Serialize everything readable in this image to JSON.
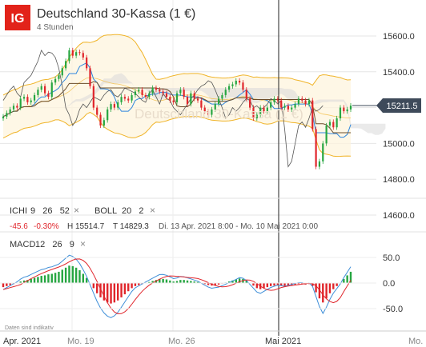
{
  "header": {
    "logo": "IG",
    "title": "Deutschland 30-Kassa (1 €)",
    "subtitle": "4 Stunden"
  },
  "colors": {
    "logo_bg": "#e2231a",
    "up": "#26a641",
    "down": "#e0252b",
    "bollinger": "#f0b429",
    "cloud": "#d9d9d9",
    "tenkan": "#2e86de",
    "kijun": "#6b4c2a",
    "chikou": "#555555",
    "macd_line": "#3f8fd8",
    "signal_line": "#e0252b",
    "price_badge": "#3e4a5a"
  },
  "price_axis": {
    "ticks": [
      "15600.0",
      "15400.0",
      "15200.0",
      "15000.0",
      "14800.0",
      "14600.0"
    ],
    "current_price": "15211.5"
  },
  "indicators": {
    "ichi_label": "ICHI",
    "ichi_params": "9   26   52",
    "boll_label": "BOLL",
    "boll_params": "20   2",
    "close_glyph": "×"
  },
  "stats": {
    "change": "-45.6",
    "change_pct": "-0.30%",
    "high": "H 15514.7",
    "low": "T 14829.3",
    "range": "Di. 13 Apr. 2021 8:00 - Mo. 10 Mai 2021 0:00"
  },
  "macd": {
    "label": "MACD",
    "params": "12   26   9",
    "ticks": [
      "50.0",
      "0.0",
      "-50.0"
    ]
  },
  "x_axis": {
    "labels": [
      "Apr. 2021",
      "Mo. 19",
      "Mo. 26",
      "Mai 2021",
      "Mo."
    ]
  },
  "footer": {
    "disclaimer": "Daten sind indikativ"
  },
  "chart_data": {
    "type": "candlestick",
    "title": "Deutschland 30-Kassa (1 €)",
    "timeframe": "4 Stunden",
    "ylim": [
      14560,
      15680
    ],
    "current_price": 15211.5,
    "high": 15514.7,
    "low": 14829.3,
    "change": -45.6,
    "change_pct": -0.3,
    "period": "Di. 13 Apr. 2021 8:00 - Mo. 10 Mai 2021 0:00",
    "indicators": [
      "Ichimoku 9 26 52",
      "Bollinger 20 2",
      "MACD 12 26 9"
    ],
    "close": [
      15150,
      15170,
      15190,
      15210,
      15200,
      15250,
      15260,
      15230,
      15240,
      15270,
      15300,
      15320,
      15280,
      15260,
      15340,
      15360,
      15380,
      15420,
      15460,
      15520,
      15490,
      15510,
      15505,
      15480,
      15420,
      15320,
      15200,
      15160,
      15100,
      15130,
      15190,
      15220,
      15200,
      15230,
      15260,
      15250,
      15240,
      15270,
      15290,
      15300,
      15270,
      15260,
      15280,
      15310,
      15300,
      15290,
      15280,
      15260,
      15240,
      15230,
      15280,
      15300,
      15260,
      15220,
      15280,
      15250,
      15240,
      15200,
      15180,
      15160,
      15190,
      15220,
      15250,
      15270,
      15300,
      15320,
      15330,
      15350,
      15340,
      15300,
      15250,
      15200,
      15140,
      15160,
      15200,
      15180,
      15200,
      15230,
      15250,
      15240,
      15200,
      15210,
      15190,
      15200,
      15220,
      15250,
      15240,
      15220,
      15240,
      15080,
      14870,
      14900,
      15000,
      15100,
      15120,
      15090,
      15140,
      15200,
      15180,
      15190,
      15211
    ],
    "macd_hist": [
      -8,
      -6,
      -4,
      -2,
      0,
      3,
      5,
      6,
      8,
      10,
      12,
      14,
      15,
      17,
      18,
      20,
      22,
      26,
      30,
      34,
      33,
      30,
      25,
      18,
      10,
      0,
      -10,
      -20,
      -28,
      -34,
      -38,
      -40,
      -38,
      -34,
      -28,
      -22,
      -16,
      -10,
      -6,
      -4,
      -2,
      0,
      2,
      4,
      6,
      8,
      8,
      7,
      5,
      3,
      4,
      6,
      6,
      5,
      4,
      3,
      2,
      0,
      -2,
      -4,
      -5,
      -4,
      -3,
      -1,
      1,
      3,
      5,
      7,
      9,
      8,
      5,
      0,
      -5,
      -10,
      -12,
      -10,
      -8,
      -6,
      -5,
      -4,
      -5,
      -6,
      -5,
      -4,
      -3,
      -2,
      -2,
      -3,
      -2,
      -6,
      -18,
      -30,
      -38,
      -30,
      -20,
      -12,
      -6,
      0,
      8,
      15,
      22
    ]
  }
}
